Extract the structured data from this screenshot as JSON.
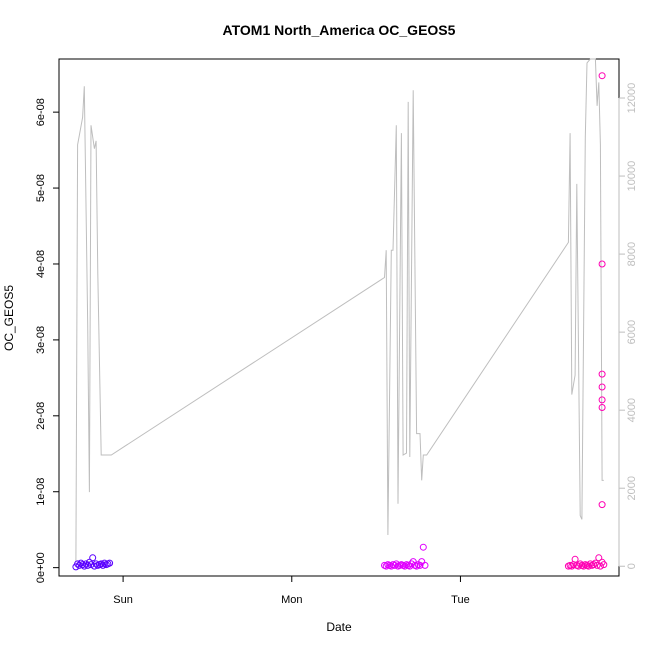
{
  "chart_data": {
    "type": "scatter",
    "title": "ATOM1 North_America OC_GEOS5",
    "xlabel": "Date",
    "ylabel": "OC_GEOS5",
    "x_ticks": [
      {
        "t": 1.0,
        "label": "Sun"
      },
      {
        "t": 2.0,
        "label": "Mon"
      },
      {
        "t": 3.0,
        "label": "Tue"
      }
    ],
    "y_ticks": [
      {
        "v": 0,
        "label": "0e+00"
      },
      {
        "v": 1e-08,
        "label": "1e-08"
      },
      {
        "v": 2e-08,
        "label": "2e-08"
      },
      {
        "v": 3e-08,
        "label": "3e-08"
      },
      {
        "v": 4e-08,
        "label": "4e-08"
      },
      {
        "v": 5e-08,
        "label": "5e-08"
      },
      {
        "v": 6e-08,
        "label": "6e-08"
      }
    ],
    "y2_ticks": [
      {
        "v": 0,
        "label": "0"
      },
      {
        "v": 2000,
        "label": "2000"
      },
      {
        "v": 4000,
        "label": "4000"
      },
      {
        "v": 6000,
        "label": "6000"
      },
      {
        "v": 8000,
        "label": "8000"
      },
      {
        "v": 10000,
        "label": "10000"
      },
      {
        "v": 12000,
        "label": "12000"
      }
    ],
    "xlim": [
      0.62,
      3.94
    ],
    "ylim": [
      -1.1e-09,
      6.7e-08
    ],
    "y2lim": [
      -250,
      13000
    ],
    "grid": false,
    "colors": {
      "altitude_line": "#bebebe",
      "day1_points": "#5a00ff",
      "day2_points": "#e000ff",
      "day3_points": "#ff00b4"
    },
    "altitude_series": {
      "x": [
        0.72,
        0.73,
        0.76,
        0.77,
        0.79,
        0.8,
        0.81,
        0.83,
        0.84,
        0.85,
        0.87,
        0.88,
        0.9,
        0.93,
        2.55,
        2.56,
        2.57,
        2.59,
        2.6,
        2.62,
        2.63,
        2.65,
        2.66,
        2.68,
        2.69,
        2.7,
        2.72,
        2.74,
        2.75,
        2.76,
        2.77,
        2.78,
        2.79,
        2.8,
        3.64,
        3.65,
        3.66,
        3.68,
        3.69,
        3.71,
        3.72,
        3.74,
        3.75,
        3.77,
        3.78,
        3.8,
        3.81,
        3.82,
        3.83,
        3.84,
        3.85
      ],
      "y": [
        100,
        10800,
        11500,
        12300,
        6200,
        1900,
        11300,
        10700,
        10900,
        7500,
        2850,
        2850,
        2850,
        2850,
        7400,
        8100,
        800,
        8100,
        8100,
        11300,
        1600,
        11100,
        2850,
        2900,
        11900,
        2800,
        12200,
        3400,
        3400,
        3400,
        2200,
        2850,
        2850,
        2850,
        8300,
        11100,
        4400,
        4900,
        9800,
        1300,
        1200,
        11000,
        12900,
        13000,
        13000,
        13000,
        11800,
        12400,
        10800,
        2200,
        2200
      ]
    },
    "series": [
      {
        "x": [
          0.72,
          0.73,
          0.74,
          0.75,
          0.76,
          0.77,
          0.78,
          0.79,
          0.8,
          0.81,
          0.82,
          0.83,
          0.84,
          0.85,
          0.86,
          0.87,
          0.88,
          0.89,
          0.9,
          0.91,
          0.92
        ],
        "y": [
          1e-10,
          5e-10,
          3e-10,
          6e-10,
          4e-10,
          2e-10,
          5e-10,
          3e-10,
          7e-10,
          4e-10,
          1.3e-09,
          2e-10,
          5e-10,
          3e-10,
          4e-10,
          5e-10,
          3e-10,
          6e-10,
          4e-10,
          5e-10,
          6e-10
        ]
      },
      {
        "x": [
          2.55,
          2.56,
          2.57,
          2.58,
          2.59,
          2.6,
          2.61,
          2.62,
          2.63,
          2.64,
          2.65,
          2.66,
          2.67,
          2.68,
          2.69,
          2.7,
          2.71,
          2.72,
          2.73,
          2.74,
          2.75,
          2.76,
          2.77,
          2.78,
          2.79
        ],
        "y": [
          3e-10,
          2e-10,
          4e-10,
          3e-10,
          2e-10,
          4e-10,
          3e-10,
          5e-10,
          2e-10,
          3e-10,
          4e-10,
          3e-10,
          2e-10,
          4e-10,
          3e-10,
          2e-10,
          5e-10,
          8e-10,
          3e-10,
          2e-10,
          4e-10,
          3e-10,
          8e-10,
          2.7e-09,
          3e-10
        ]
      },
      {
        "x": [
          3.64,
          3.65,
          3.66,
          3.67,
          3.68,
          3.69,
          3.7,
          3.71,
          3.72,
          3.73,
          3.74,
          3.75,
          3.76,
          3.77,
          3.78,
          3.79,
          3.8,
          3.81,
          3.82,
          3.83,
          3.84,
          3.84,
          3.84,
          3.84,
          3.84,
          3.84,
          3.84,
          3.84,
          3.85
        ],
        "y": [
          2e-10,
          3e-10,
          2e-10,
          4e-10,
          1.1e-09,
          3e-10,
          2e-10,
          5e-10,
          3e-10,
          2e-10,
          4e-10,
          3e-10,
          2e-10,
          5e-10,
          3e-10,
          4e-10,
          6e-10,
          3e-10,
          1.3e-09,
          2e-10,
          8.3e-09,
          2.11e-08,
          2.21e-08,
          2.38e-08,
          2.55e-08,
          4e-08,
          6.48e-08,
          7e-10,
          4e-10
        ]
      }
    ]
  }
}
